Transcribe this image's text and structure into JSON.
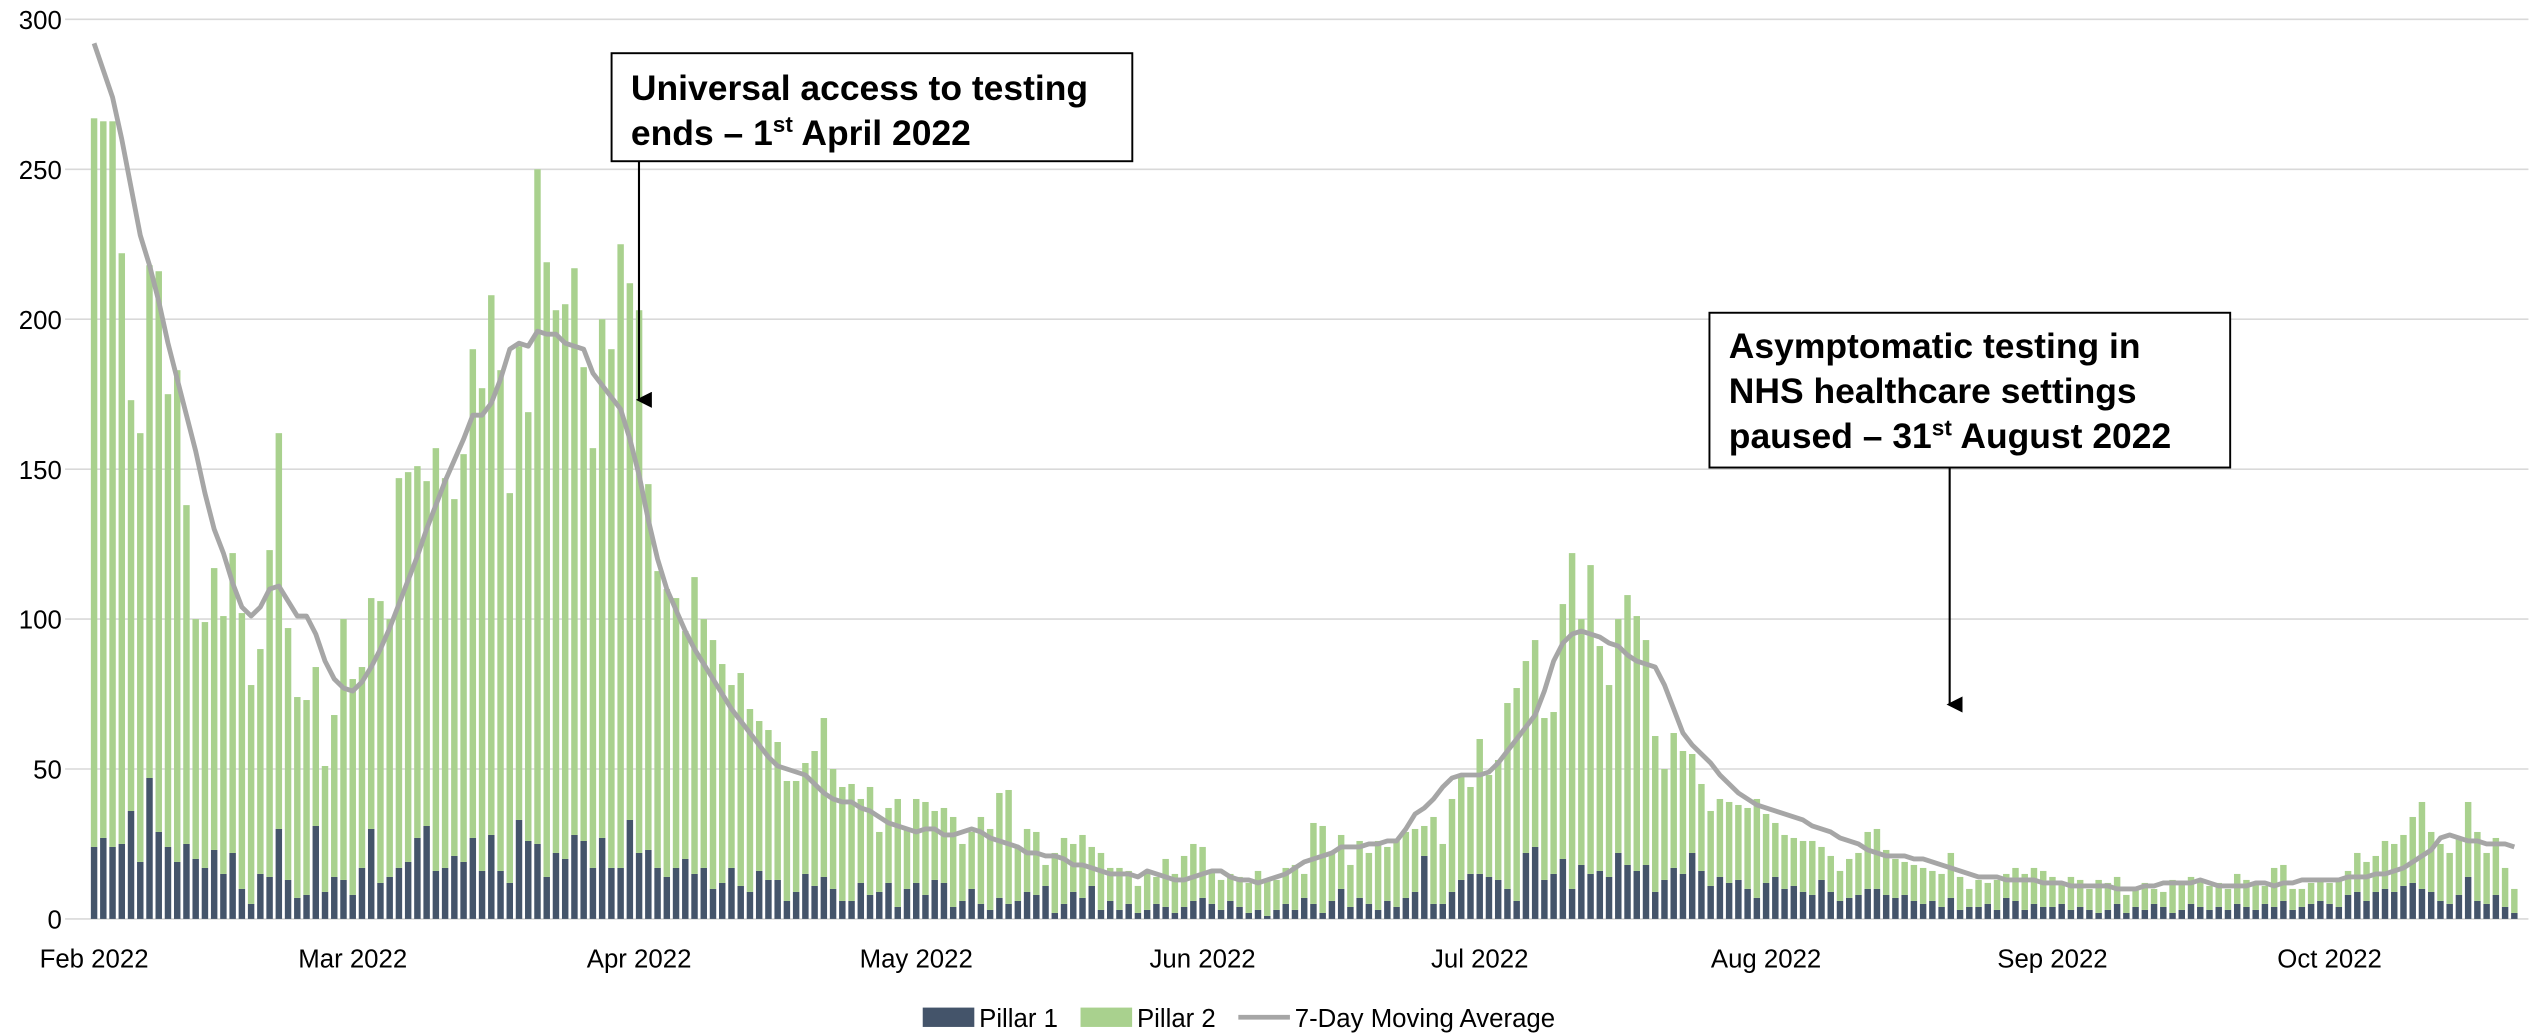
{
  "chart_data": {
    "type": "stacked-bar-line",
    "categories": [
      "Feb 2022",
      null,
      null,
      null,
      null,
      null,
      null,
      null,
      null,
      null,
      null,
      null,
      null,
      null,
      null,
      null,
      null,
      null,
      null,
      null,
      null,
      null,
      null,
      null,
      null,
      null,
      null,
      null,
      "Mar 2022",
      null,
      null,
      null,
      null,
      null,
      null,
      null,
      null,
      null,
      null,
      null,
      null,
      null,
      null,
      null,
      null,
      null,
      null,
      null,
      null,
      null,
      null,
      null,
      null,
      null,
      null,
      null,
      null,
      null,
      null,
      "Apr 2022",
      null,
      null,
      null,
      null,
      null,
      null,
      null,
      null,
      null,
      null,
      null,
      null,
      null,
      null,
      null,
      null,
      null,
      null,
      null,
      null,
      null,
      null,
      null,
      null,
      null,
      null,
      null,
      null,
      null,
      "May 2022",
      null,
      null,
      null,
      null,
      null,
      null,
      null,
      null,
      null,
      null,
      null,
      null,
      null,
      null,
      null,
      null,
      null,
      null,
      null,
      null,
      null,
      null,
      null,
      null,
      null,
      null,
      null,
      null,
      null,
      null,
      "Jun 2022",
      null,
      null,
      null,
      null,
      null,
      null,
      null,
      null,
      null,
      null,
      null,
      null,
      null,
      null,
      null,
      null,
      null,
      null,
      null,
      null,
      null,
      null,
      null,
      null,
      null,
      null,
      null,
      null,
      null,
      "Jul 2022",
      null,
      null,
      null,
      null,
      null,
      null,
      null,
      null,
      null,
      null,
      null,
      null,
      null,
      null,
      null,
      null,
      null,
      null,
      null,
      null,
      null,
      null,
      null,
      null,
      null,
      null,
      null,
      null,
      null,
      null,
      "Aug 2022",
      null,
      null,
      null,
      null,
      null,
      null,
      null,
      null,
      null,
      null,
      null,
      null,
      null,
      null,
      null,
      null,
      null,
      null,
      null,
      null,
      null,
      null,
      null,
      null,
      null,
      null,
      null,
      null,
      null,
      null,
      "Sep 2022",
      null,
      null,
      null,
      null,
      null,
      null,
      null,
      null,
      null,
      null,
      null,
      null,
      null,
      null,
      null,
      null,
      null,
      null,
      null,
      null,
      null,
      null,
      null,
      null,
      null,
      null,
      null,
      null,
      null,
      "Oct 2022",
      null,
      null,
      null,
      null,
      null,
      null,
      null,
      null,
      null,
      null,
      null,
      null,
      null,
      null,
      null,
      null,
      null,
      null,
      null,
      null
    ],
    "series": [
      {
        "name": "Pillar 1",
        "color": "#44546a",
        "kind": "bar",
        "values": [
          24,
          27,
          24,
          25,
          36,
          19,
          47,
          29,
          24,
          19,
          25,
          20,
          17,
          23,
          15,
          22,
          10,
          5,
          15,
          14,
          30,
          13,
          7,
          8,
          31,
          9,
          14,
          13,
          8,
          17,
          30,
          12,
          14,
          17,
          19,
          27,
          31,
          16,
          17,
          21,
          19,
          27,
          16,
          28,
          16,
          12,
          33,
          26,
          25,
          14,
          22,
          20,
          28,
          26,
          17,
          27,
          17,
          17,
          33,
          22,
          23,
          17,
          14,
          17,
          20,
          15,
          17,
          10,
          12,
          17,
          11,
          9,
          16,
          13,
          13,
          6,
          9,
          15,
          11,
          14,
          10,
          6,
          6,
          12,
          8,
          9,
          12,
          4,
          10,
          12,
          8,
          13,
          12,
          4,
          6,
          10,
          5,
          3,
          7,
          5,
          6,
          9,
          8,
          11,
          2,
          5,
          9,
          7,
          11,
          3,
          6,
          3,
          5,
          2,
          3,
          5,
          4,
          2,
          4,
          6,
          7,
          5,
          3,
          6,
          4,
          2,
          3,
          1,
          3,
          5,
          3,
          7,
          5,
          2,
          6,
          10,
          4,
          7,
          5,
          3,
          6,
          4,
          7,
          9,
          21,
          5,
          5,
          9,
          13,
          15,
          15,
          14,
          13,
          10,
          6,
          22,
          24,
          13,
          15,
          20,
          10,
          18,
          15,
          16,
          14,
          22,
          18,
          16,
          18,
          9,
          13,
          17,
          15,
          22,
          16,
          11,
          14,
          12,
          13,
          10,
          7,
          12,
          14,
          10,
          11,
          9,
          8,
          13,
          9,
          6,
          7,
          8,
          10,
          10,
          8,
          7,
          8,
          6,
          5,
          6,
          4,
          7,
          3,
          4,
          4,
          5,
          3,
          7,
          6,
          3,
          5,
          4,
          4,
          5,
          3,
          4,
          3,
          2,
          3,
          5,
          2,
          4,
          3,
          5,
          4,
          2,
          3,
          5,
          4,
          3,
          4,
          3,
          5,
          4,
          3,
          5,
          4,
          6,
          3,
          4,
          5,
          6,
          5,
          4,
          8,
          9,
          6,
          9,
          10,
          9,
          11,
          12,
          10,
          9,
          6,
          5,
          8,
          14,
          6,
          5,
          8,
          4,
          2
        ]
      },
      {
        "name": "Pillar 2",
        "color": "#a9d18e",
        "kind": "bar",
        "values": [
          243,
          239,
          242,
          197,
          137,
          143,
          171,
          187,
          151,
          164,
          113,
          80,
          82,
          94,
          86,
          100,
          92,
          73,
          75,
          109,
          132,
          84,
          67,
          65,
          53,
          42,
          54,
          87,
          72,
          67,
          77,
          94,
          86,
          130,
          130,
          124,
          115,
          141,
          130,
          119,
          136,
          163,
          161,
          180,
          167,
          130,
          158,
          143,
          225,
          205,
          181,
          185,
          189,
          158,
          140,
          173,
          173,
          208,
          179,
          181,
          122,
          99,
          96,
          90,
          76,
          99,
          83,
          83,
          73,
          61,
          71,
          61,
          50,
          50,
          46,
          40,
          37,
          37,
          45,
          53,
          40,
          38,
          39,
          28,
          36,
          20,
          25,
          36,
          20,
          28,
          31,
          23,
          25,
          30,
          19,
          19,
          29,
          27,
          35,
          38,
          18,
          21,
          21,
          7,
          20,
          22,
          16,
          21,
          13,
          19,
          11,
          14,
          11,
          9,
          13,
          9,
          16,
          13,
          17,
          19,
          17,
          11,
          10,
          9,
          10,
          10,
          13,
          12,
          10,
          12,
          15,
          8,
          27,
          29,
          16,
          18,
          14,
          19,
          17,
          23,
          18,
          22,
          22,
          21,
          10,
          29,
          20,
          31,
          35,
          29,
          45,
          34,
          40,
          62,
          71,
          64,
          69,
          54,
          54,
          85,
          112,
          82,
          103,
          75,
          64,
          78,
          90,
          85,
          75,
          52,
          37,
          45,
          41,
          33,
          29,
          25,
          26,
          27,
          25,
          27,
          33,
          23,
          18,
          18,
          16,
          17,
          18,
          11,
          12,
          10,
          13,
          14,
          19,
          20,
          15,
          13,
          11,
          12,
          12,
          10,
          11,
          15,
          11,
          6,
          9,
          7,
          10,
          8,
          11,
          12,
          12,
          12,
          10,
          7,
          11,
          9,
          7,
          11,
          9,
          9,
          6,
          6,
          9,
          5,
          5,
          11,
          9,
          9,
          9,
          8,
          8,
          7,
          10,
          9,
          9,
          6,
          13,
          12,
          7,
          6,
          7,
          7,
          7,
          9,
          8,
          13,
          13,
          12,
          16,
          16,
          17,
          22,
          29,
          20,
          19,
          17,
          19,
          25,
          23,
          17,
          19,
          13,
          8
        ]
      },
      {
        "name": "7-Day Moving Average",
        "color": "#a6a6a6",
        "kind": "line",
        "values": [
          292,
          283,
          274,
          260,
          244,
          228,
          218,
          206,
          192,
          180,
          168,
          156,
          142,
          130,
          122,
          112,
          104,
          101,
          104,
          110,
          111,
          106,
          101,
          101,
          95,
          86,
          80,
          77,
          76,
          79,
          84,
          90,
          97,
          105,
          113,
          121,
          130,
          138,
          146,
          153,
          160,
          168,
          168,
          172,
          180,
          190,
          192,
          191,
          196,
          195,
          195,
          192,
          191,
          190,
          182,
          178,
          174,
          170,
          160,
          148,
          133,
          120,
          110,
          103,
          96,
          90,
          85,
          80,
          75,
          70,
          66,
          62,
          58,
          54,
          51,
          50,
          49,
          48,
          45,
          42,
          40,
          39,
          39,
          37,
          36,
          34,
          32,
          31,
          30,
          29,
          30,
          30,
          28,
          28,
          29,
          30,
          29,
          27,
          26,
          25,
          24,
          22,
          22,
          21,
          21,
          20,
          18,
          18,
          17,
          16,
          15,
          15,
          15,
          14,
          16,
          15,
          14,
          13,
          13,
          14,
          15,
          16,
          16,
          14,
          13,
          13,
          12,
          13,
          14,
          15,
          17,
          19,
          20,
          21,
          22,
          24,
          24,
          24,
          25,
          25,
          26,
          26,
          30,
          35,
          37,
          40,
          44,
          47,
          48,
          48,
          48,
          49,
          52,
          56,
          60,
          64,
          68,
          76,
          86,
          92,
          95,
          96,
          95,
          94,
          92,
          91,
          88,
          86,
          85,
          84,
          78,
          70,
          62,
          58,
          55,
          52,
          48,
          45,
          42,
          40,
          38,
          37,
          36,
          35,
          34,
          33,
          31,
          30,
          29,
          27,
          26,
          25,
          23,
          22,
          21,
          21,
          21,
          20,
          20,
          19,
          18,
          17,
          16,
          15,
          14,
          14,
          14,
          13,
          13,
          13,
          13,
          12,
          12,
          12,
          11,
          11,
          11,
          11,
          11,
          10,
          10,
          10,
          11,
          11,
          12,
          12,
          12,
          12,
          13,
          12,
          11,
          11,
          11,
          11,
          12,
          12,
          11,
          12,
          12,
          13,
          13,
          13,
          13,
          13,
          14,
          14,
          14,
          15,
          15,
          16,
          17,
          19,
          21,
          23,
          27,
          28,
          27,
          26,
          26,
          25,
          25,
          25,
          24
        ]
      }
    ],
    "ylim": [
      0,
      300
    ],
    "yticks": [
      0,
      50,
      100,
      150,
      200,
      250,
      300
    ],
    "grid": true,
    "legend": "bottom",
    "annotations": [
      {
        "lines": [
          [
            "Universal access to testing"
          ],
          [
            "ends – 1",
            "st",
            " April 2022"
          ]
        ]
      },
      {
        "lines": [
          [
            "Asymptomatic testing in"
          ],
          [
            "NHS healthcare settings"
          ],
          [
            "paused – 31",
            "st",
            " August 2022"
          ]
        ]
      }
    ]
  }
}
